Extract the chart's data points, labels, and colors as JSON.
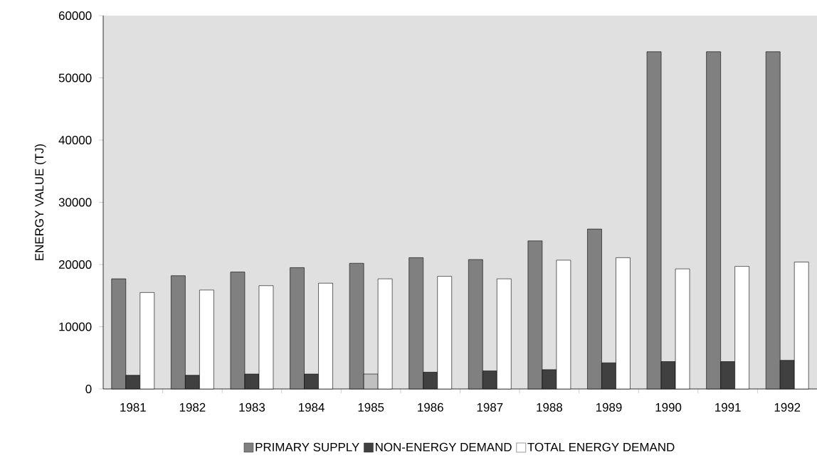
{
  "chart_data": {
    "type": "bar",
    "ylabel": "ENERGY VALUE  (TJ)",
    "categories": [
      "1981",
      "1982",
      "1983",
      "1984",
      "1985",
      "1986",
      "1987",
      "1988",
      "1989",
      "1990",
      "1991",
      "1992"
    ],
    "series": [
      {
        "name": "PRIMARY  SUPPLY",
        "color": "#808080",
        "values": [
          17700,
          18200,
          18800,
          19500,
          20200,
          21100,
          20800,
          23800,
          25700,
          54200,
          54200,
          54200
        ]
      },
      {
        "name": "NON-ENERGY DEMAND",
        "color": "#404040",
        "colors": [
          "#404040",
          "#404040",
          "#404040",
          "#404040",
          "#c0c0c0",
          "#404040",
          "#404040",
          "#404040",
          "#404040",
          "#404040",
          "#404040",
          "#404040"
        ],
        "values": [
          2200,
          2200,
          2400,
          2400,
          2400,
          2700,
          2900,
          3100,
          4200,
          4400,
          4400,
          4600
        ]
      },
      {
        "name": "TOTAL ENERGY DEMAND",
        "color": "#ffffff",
        "values": [
          15500,
          15900,
          16600,
          17000,
          17700,
          18100,
          17700,
          20700,
          21100,
          19300,
          19700,
          20400
        ]
      }
    ],
    "ylim": [
      0,
      60000
    ],
    "yticks": [
      0,
      10000,
      20000,
      30000,
      40000,
      50000,
      60000
    ],
    "grid": false,
    "legend": "bottom"
  }
}
